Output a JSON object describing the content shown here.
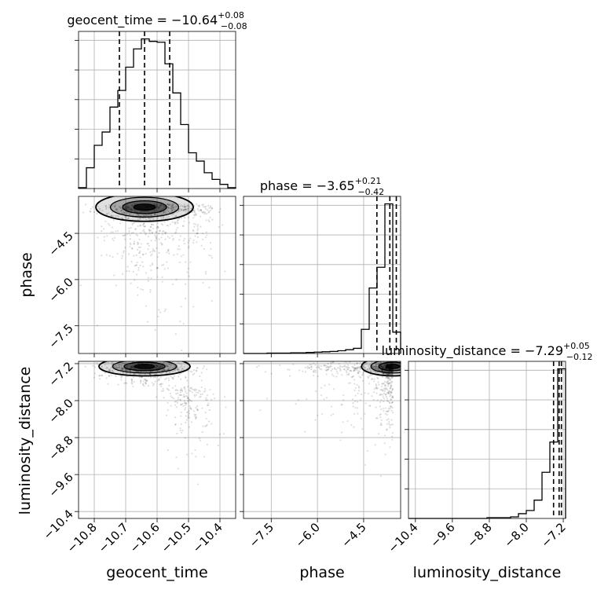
{
  "chart_data": {
    "type": "corner",
    "parameters": [
      "geocent_time",
      "phase",
      "luminosity_distance"
    ],
    "titles": [
      {
        "prefix": "geocent_time = ",
        "value": "−10.64",
        "plus": "+0.08",
        "minus": "−0.08"
      },
      {
        "prefix": "phase = ",
        "value": "−3.65",
        "plus": "+0.21",
        "minus": "−0.42"
      },
      {
        "prefix": "luminosity_distance = ",
        "value": "−7.29",
        "plus": "+0.05",
        "minus": "−0.12"
      }
    ],
    "axis_labels": {
      "x": [
        "geocent_time",
        "phase",
        "luminosity_distance"
      ],
      "y": [
        "phase",
        "luminosity_distance"
      ]
    },
    "ticks": {
      "geocent_time": {
        "values": [
          -10.8,
          -10.7,
          -10.6,
          -10.5,
          -10.4
        ],
        "labels": [
          "−10.8",
          "−10.7",
          "−10.6",
          "−10.5",
          "−10.4"
        ]
      },
      "phase": {
        "values": [
          -7.5,
          -6.0,
          -4.5
        ],
        "labels": [
          "−7.5",
          "−6.0",
          "−4.5"
        ]
      },
      "luminosity_distance": {
        "values": [
          -10.4,
          -9.6,
          -8.8,
          -8.0,
          -7.2
        ],
        "labels": [
          "−10.4",
          "−9.6",
          "−8.8",
          "−8.0",
          "−7.2"
        ]
      }
    },
    "ranges": {
      "geocent_time": [
        -10.85,
        -10.35
      ],
      "phase": [
        -8.4,
        -3.3
      ],
      "luminosity_distance": [
        -10.55,
        -7.15
      ]
    },
    "histograms": {
      "geocent_time": {
        "edges": [
          -10.85,
          -10.825,
          -10.8,
          -10.775,
          -10.75,
          -10.725,
          -10.7,
          -10.675,
          -10.65,
          -10.625,
          -10.6,
          -10.575,
          -10.55,
          -10.525,
          -10.5,
          -10.475,
          -10.45,
          -10.425,
          -10.4,
          -10.375,
          -10.35
        ],
        "counts": [
          1,
          25,
          52,
          68,
          98,
          118,
          146,
          168,
          180,
          177,
          176,
          150,
          115,
          77,
          43,
          33,
          19,
          11,
          5,
          1
        ]
      },
      "phase": {
        "edges": [
          -8.4,
          -8.145,
          -7.89,
          -7.635,
          -7.38,
          -7.125,
          -6.87,
          -6.615,
          -6.36,
          -6.105,
          -5.85,
          -5.595,
          -5.34,
          -5.085,
          -4.83,
          -4.575,
          -4.32,
          -4.065,
          -3.81,
          -3.555,
          -3.3
        ],
        "counts": [
          0,
          0,
          0,
          1,
          1,
          1,
          2,
          2,
          3,
          4,
          5,
          6,
          8,
          11,
          15,
          70,
          190,
          250,
          434,
          62
        ]
      },
      "luminosity_distance": {
        "edges": [
          -10.55,
          -10.38,
          -10.21,
          -10.04,
          -9.87,
          -9.7,
          -9.53,
          -9.36,
          -9.19,
          -9.02,
          -8.85,
          -8.68,
          -8.51,
          -8.34,
          -8.17,
          -8.0,
          -7.83,
          -7.66,
          -7.49,
          -7.32,
          -7.15
        ],
        "counts": [
          0,
          0,
          0,
          0,
          0,
          0,
          0,
          0,
          0,
          0,
          1,
          1,
          1,
          2,
          6,
          10,
          23,
          58,
          96,
          188
        ]
      }
    },
    "quantile_lines": {
      "geocent_time": [
        -10.72,
        -10.64,
        -10.56
      ],
      "phase": [
        -4.07,
        -3.65,
        -3.44
      ],
      "luminosity_distance": [
        -7.41,
        -7.29,
        -7.24
      ]
    },
    "colors": {
      "hist": "#000000",
      "grid": "#b0b0b0",
      "points": "#000000",
      "contour_fill": "#000000"
    }
  }
}
